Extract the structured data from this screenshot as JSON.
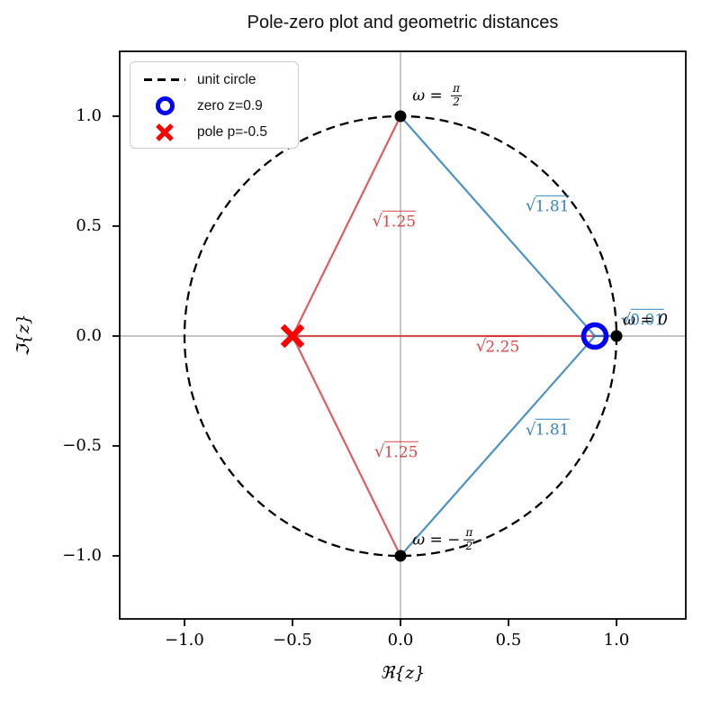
{
  "figure": {
    "title": "Pole-zero plot and geometric distances",
    "background": "#ffffff"
  },
  "legend": {
    "items": [
      {
        "marker": "dashed-line-sample",
        "label": "unit circle",
        "color": "#000000"
      },
      {
        "marker": "circle-marker-sample",
        "label": "zero z=0.9",
        "color": "#0000ff"
      },
      {
        "marker": "x-marker-sample",
        "label": "pole p=-0.5",
        "color": "#ff0000"
      }
    ]
  },
  "chart_data": {
    "type": "scatter",
    "title": "Pole-zero plot and geometric distances",
    "xlabel": "ℜ{z}",
    "ylabel": "ℑ{z}",
    "xlim": [
      -1.3,
      1.32
    ],
    "ylim": [
      -1.29,
      1.3
    ],
    "grid": "origin-crosshair",
    "crosshair_color": "#b0b0b0",
    "xticks": {
      "values": [
        -1.0,
        -0.5,
        0.0,
        0.5,
        1.0
      ],
      "labels": [
        "−1.0",
        "−0.5",
        "0.0",
        "0.5",
        "1.0"
      ]
    },
    "yticks": {
      "values": [
        1.0,
        0.5,
        0.0,
        -0.5,
        -1.0
      ],
      "labels": [
        "1.0",
        "0.5",
        "0.0",
        "−0.5",
        "−1.0"
      ]
    },
    "unit_circle": {
      "center": [
        0,
        0
      ],
      "radius": 1,
      "line_style": "dashed",
      "color": "#000000",
      "legend_label": "unit circle"
    },
    "zero": {
      "x": 0.9,
      "y": 0,
      "color": "#0000ff",
      "legend_label": "zero z=0.9"
    },
    "pole": {
      "x": -0.5,
      "y": 0,
      "color": "#ff0000",
      "legend_label": "pole p=-0.5"
    },
    "circle_points": [
      {
        "x": 0,
        "y": 1,
        "label": {
          "display": "ω = π/2",
          "pre": "ω = ",
          "num": "π",
          "den": "2"
        },
        "label_pos": [
          0.055,
          1.09
        ]
      },
      {
        "x": 1,
        "y": 0,
        "label": {
          "display": "ω = 0",
          "pre": "ω = 0"
        },
        "label_pos": [
          1.03,
          0.07
        ]
      },
      {
        "x": 0,
        "y": -1,
        "label": {
          "display": "ω = −π/2",
          "pre": "ω = −",
          "num": "π",
          "den": "2"
        },
        "label_pos": [
          0.055,
          -0.93
        ]
      }
    ],
    "pole_distances": {
      "color": "#d62728",
      "opacity": 0.75,
      "lines": [
        {
          "from": [
            -0.5,
            0
          ],
          "to": [
            0,
            1
          ],
          "radicand": "1.25",
          "display": "√1.25",
          "label_pos": [
            -0.03,
            0.52
          ]
        },
        {
          "from": [
            -0.5,
            0
          ],
          "to": [
            1,
            0
          ],
          "radicand": "2.25",
          "display": "√2.25",
          "label_pos": [
            0.45,
            -0.05
          ]
        },
        {
          "from": [
            -0.5,
            0
          ],
          "to": [
            0,
            -1
          ],
          "radicand": "1.25",
          "display": "√1.25",
          "label_pos": [
            -0.02,
            -0.53
          ]
        }
      ]
    },
    "zero_distances": {
      "color": "#1f77b4",
      "opacity": 0.8,
      "lines": [
        {
          "from": [
            0.9,
            0
          ],
          "to": [
            0,
            1
          ],
          "radicand": "1.81",
          "display": "√1.81",
          "label_pos": [
            0.68,
            0.59
          ]
        },
        {
          "from": [
            0.9,
            0
          ],
          "to": [
            1,
            0
          ],
          "radicand": "0.01",
          "display": "√0.01",
          "label_pos": [
            1.12,
            0.07
          ]
        },
        {
          "from": [
            0.9,
            0
          ],
          "to": [
            0,
            -1
          ],
          "radicand": "1.81",
          "display": "√1.81",
          "label_pos": [
            0.68,
            -0.43
          ]
        }
      ]
    }
  }
}
